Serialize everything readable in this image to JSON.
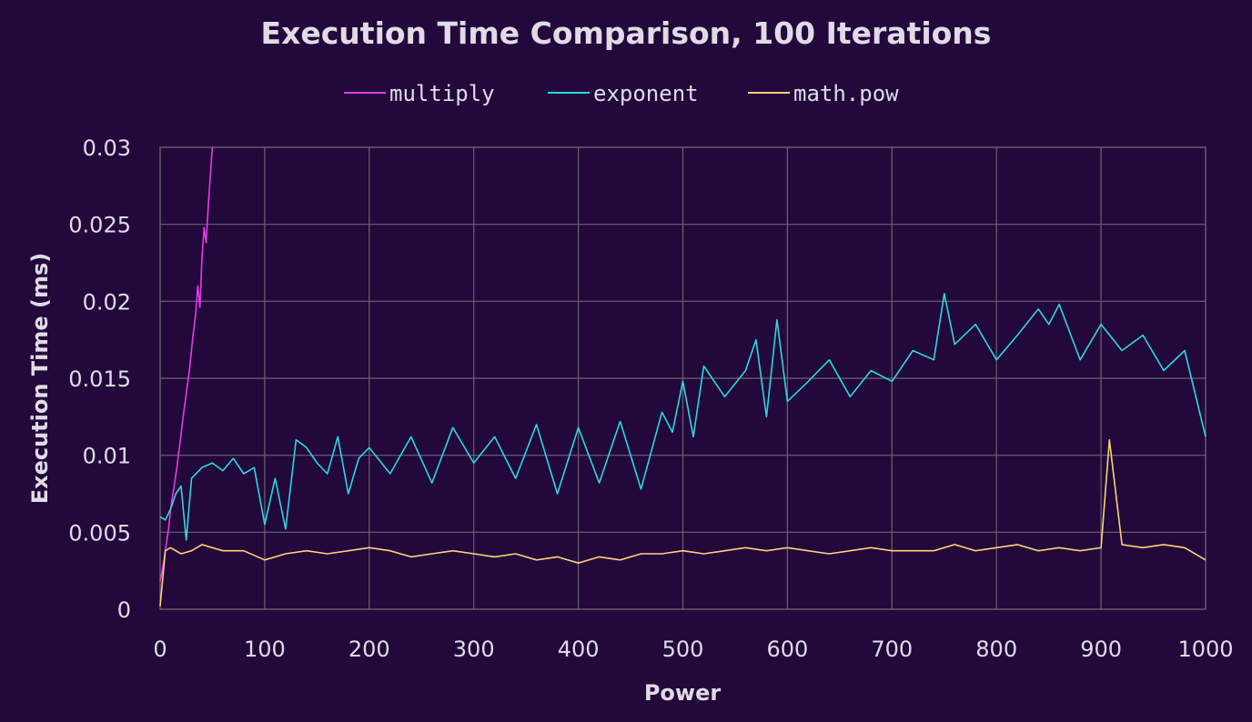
{
  "chart_data": {
    "type": "line",
    "title": "Execution Time Comparison, 100 Iterations",
    "xlabel": "Power",
    "ylabel": "Execution Time (ms)",
    "xlim": [
      0,
      1000
    ],
    "ylim": [
      0,
      0.03
    ],
    "x_ticks": [
      "0",
      "100",
      "200",
      "300",
      "400",
      "500",
      "600",
      "700",
      "800",
      "900",
      "1000"
    ],
    "y_ticks": [
      "0",
      "0.005",
      "0.01",
      "0.015",
      "0.02",
      "0.025",
      "0.03"
    ],
    "grid": true,
    "legend_position": "top",
    "series": [
      {
        "name": "multiply",
        "color": "#e53be8",
        "x": [
          0,
          2,
          5,
          8,
          10,
          13,
          16,
          19,
          22,
          25,
          28,
          31,
          34,
          36,
          38,
          40,
          42,
          44,
          46,
          48,
          50
        ],
        "y": [
          0.0018,
          0.0025,
          0.0038,
          0.0052,
          0.0065,
          0.0078,
          0.0092,
          0.0108,
          0.0125,
          0.014,
          0.0155,
          0.0175,
          0.0192,
          0.021,
          0.0196,
          0.0228,
          0.0248,
          0.0238,
          0.0262,
          0.0282,
          0.03
        ]
      },
      {
        "name": "exponent",
        "color": "#2cd8dc",
        "x": [
          0,
          5,
          10,
          15,
          20,
          25,
          30,
          40,
          50,
          60,
          70,
          80,
          90,
          100,
          110,
          120,
          130,
          140,
          150,
          160,
          170,
          180,
          190,
          200,
          220,
          240,
          260,
          280,
          300,
          320,
          340,
          360,
          380,
          400,
          420,
          440,
          460,
          480,
          490,
          500,
          510,
          520,
          540,
          560,
          570,
          580,
          590,
          600,
          620,
          640,
          660,
          680,
          700,
          720,
          740,
          750,
          760,
          780,
          800,
          820,
          840,
          850,
          860,
          880,
          900,
          920,
          940,
          960,
          980,
          1000
        ],
        "y": [
          0.006,
          0.0058,
          0.0065,
          0.0075,
          0.008,
          0.0045,
          0.0085,
          0.0092,
          0.0095,
          0.009,
          0.0098,
          0.0088,
          0.0092,
          0.0055,
          0.0085,
          0.0052,
          0.011,
          0.0105,
          0.0095,
          0.0088,
          0.0112,
          0.0075,
          0.0098,
          0.0105,
          0.0088,
          0.0112,
          0.0082,
          0.0118,
          0.0095,
          0.0112,
          0.0085,
          0.012,
          0.0075,
          0.0118,
          0.0082,
          0.0122,
          0.0078,
          0.0128,
          0.0115,
          0.0148,
          0.0112,
          0.0158,
          0.0138,
          0.0155,
          0.0175,
          0.0125,
          0.0188,
          0.0135,
          0.0148,
          0.0162,
          0.0138,
          0.0155,
          0.0148,
          0.0168,
          0.0162,
          0.0205,
          0.0172,
          0.0185,
          0.0162,
          0.0178,
          0.0195,
          0.0185,
          0.0198,
          0.0162,
          0.0185,
          0.0168,
          0.0178,
          0.0155,
          0.0168,
          0.0112
        ]
      },
      {
        "name": "math.pow",
        "color": "#fdd27a",
        "x": [
          0,
          5,
          10,
          20,
          30,
          40,
          50,
          60,
          80,
          100,
          120,
          140,
          160,
          180,
          200,
          220,
          240,
          260,
          280,
          300,
          320,
          340,
          360,
          380,
          400,
          420,
          440,
          460,
          480,
          500,
          520,
          540,
          560,
          580,
          600,
          620,
          640,
          660,
          680,
          700,
          720,
          740,
          760,
          780,
          800,
          820,
          840,
          860,
          880,
          900,
          908,
          920,
          940,
          960,
          980,
          1000
        ],
        "y": [
          0.0002,
          0.0038,
          0.004,
          0.0036,
          0.0038,
          0.0042,
          0.004,
          0.0038,
          0.0038,
          0.0032,
          0.0036,
          0.0038,
          0.0036,
          0.0038,
          0.004,
          0.0038,
          0.0034,
          0.0036,
          0.0038,
          0.0036,
          0.0034,
          0.0036,
          0.0032,
          0.0034,
          0.003,
          0.0034,
          0.0032,
          0.0036,
          0.0036,
          0.0038,
          0.0036,
          0.0038,
          0.004,
          0.0038,
          0.004,
          0.0038,
          0.0036,
          0.0038,
          0.004,
          0.0038,
          0.0038,
          0.0038,
          0.0042,
          0.0038,
          0.004,
          0.0042,
          0.0038,
          0.004,
          0.0038,
          0.004,
          0.011,
          0.0042,
          0.004,
          0.0042,
          0.004,
          0.0032
        ]
      }
    ]
  }
}
